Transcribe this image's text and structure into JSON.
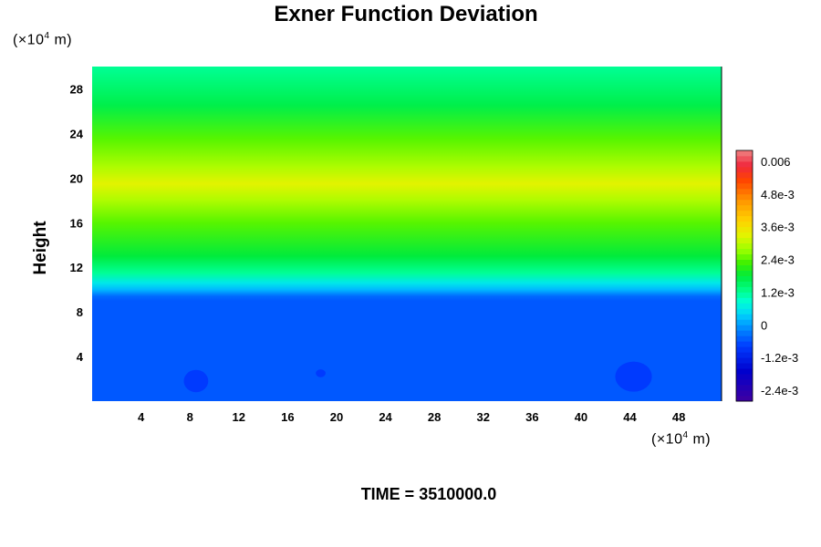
{
  "chart_data": {
    "type": "heatmap",
    "title": "Exner Function Deviation",
    "ylabel": "Height",
    "xlabel": "",
    "x_unit_prefix": "(×10",
    "x_unit_exp": "4",
    "x_unit_suffix": " m)",
    "y_unit_prefix": "(×10",
    "y_unit_exp": "4",
    "y_unit_suffix": " m)",
    "xlim": [
      0,
      51.5
    ],
    "ylim": [
      0,
      30
    ],
    "x_ticks": [
      4,
      8,
      12,
      16,
      20,
      24,
      28,
      32,
      36,
      40,
      44,
      48
    ],
    "y_ticks": [
      4,
      8,
      12,
      16,
      20,
      24,
      28
    ],
    "height_profile": [
      {
        "y": 0,
        "value": -0.00055
      },
      {
        "y": 9.0,
        "value": -0.00055
      },
      {
        "y": 9.4,
        "value": -0.0004
      },
      {
        "y": 10.0,
        "value": 0.0002
      },
      {
        "y": 10.6,
        "value": 0.0006
      },
      {
        "y": 11.5,
        "value": 0.0012
      },
      {
        "y": 13.0,
        "value": 0.0018
      },
      {
        "y": 16.0,
        "value": 0.0024
      },
      {
        "y": 18.0,
        "value": 0.0029
      },
      {
        "y": 19.5,
        "value": 0.0033
      },
      {
        "y": 21.0,
        "value": 0.0029
      },
      {
        "y": 23.5,
        "value": 0.0024
      },
      {
        "y": 26.5,
        "value": 0.0017
      },
      {
        "y": 30,
        "value": 0.0012
      }
    ],
    "anomalies": [
      {
        "x": 8.5,
        "y": 1.8,
        "rx": 1.0,
        "ry": 1.0,
        "value": -0.0008
      },
      {
        "x": 18.7,
        "y": 2.5,
        "rx": 0.4,
        "ry": 0.35,
        "value": -0.0008
      },
      {
        "x": 44.3,
        "y": 2.2,
        "rx": 1.5,
        "ry": 1.35,
        "value": -0.0008
      }
    ],
    "colorbar": {
      "min": -0.0028,
      "max": 0.0064,
      "tick_values": [
        0.006,
        0.0048,
        0.0036,
        0.0024,
        0.0012,
        0,
        -0.0012,
        -0.0024
      ],
      "tick_labels": [
        "0.006",
        "4.8e-3",
        "3.6e-3",
        "2.4e-3",
        "1.2e-3",
        "0",
        "-1.2e-3",
        "-2.4e-3"
      ]
    },
    "grid": false,
    "legend": "right"
  },
  "footer": {
    "time_label": "TIME = 3510000.0"
  }
}
